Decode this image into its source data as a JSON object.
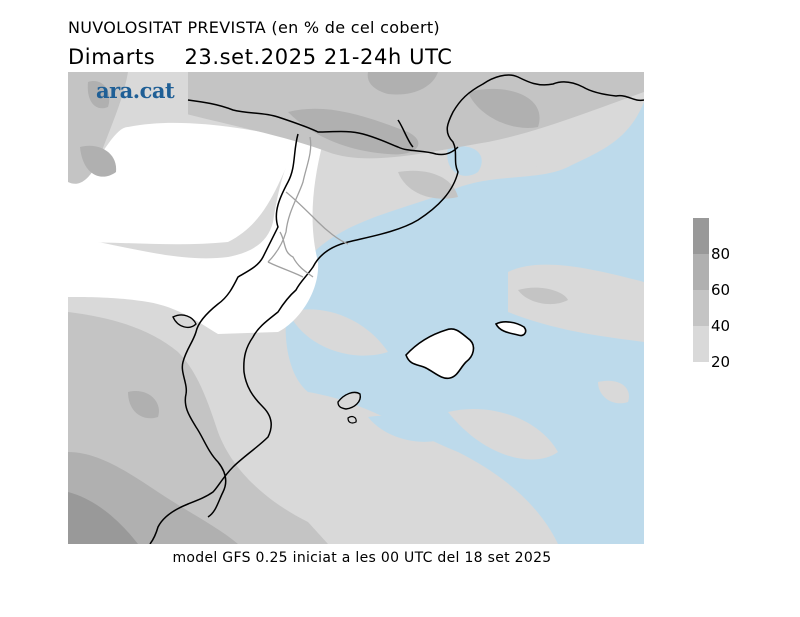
{
  "header": {
    "title": "NUVOLOSITAT PREVISTA (en % de cel cobert)",
    "date_line": "Dimarts    23.set.2025 21-24h UTC"
  },
  "logo": {
    "text": "ara.cat",
    "color": "#1f5f96"
  },
  "footer": {
    "model_text": "model GFS 0.25 iniciat a les 00 UTC del 18 set 2025"
  },
  "legend": {
    "labels": [
      "80",
      "60",
      "40",
      "20"
    ],
    "levels": [
      {
        "range": "0-20",
        "color": "#ffffff"
      },
      {
        "range": "20-40",
        "color": "#d9d9d9"
      },
      {
        "range": "40-60",
        "color": "#c4c4c4"
      },
      {
        "range": "60-80",
        "color": "#b0b0b0"
      },
      {
        "range": "80-100",
        "color": "#999999"
      }
    ]
  },
  "map": {
    "sea_color": "#bddaeb",
    "coastline_color": "#000000",
    "border_color": "#a0a0a0"
  }
}
